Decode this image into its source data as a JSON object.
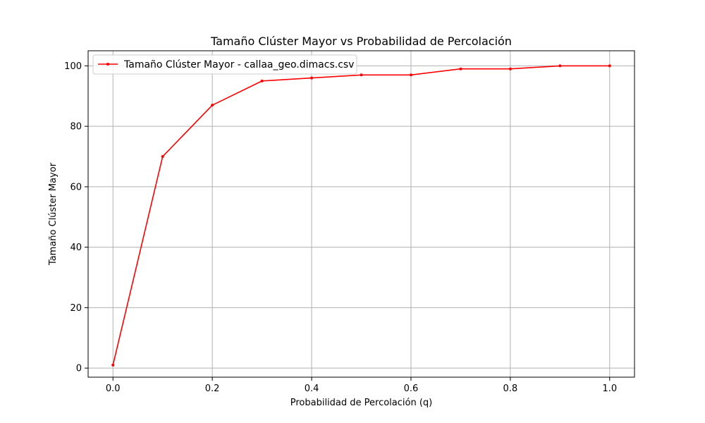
{
  "chart_data": {
    "type": "line",
    "title": "Tamaño Clúster Mayor vs Probabilidad de Percolación",
    "xlabel": "Probabilidad de Percolación (q)",
    "ylabel": "Tamaño Clúster Mayor",
    "xlim": [
      -0.05,
      1.05
    ],
    "ylim": [
      -3,
      105
    ],
    "xticks": [
      0.0,
      0.2,
      0.4,
      0.6,
      0.8,
      1.0
    ],
    "xtick_labels": [
      "0.0",
      "0.2",
      "0.4",
      "0.6",
      "0.8",
      "1.0"
    ],
    "yticks": [
      0,
      20,
      40,
      60,
      80,
      100
    ],
    "ytick_labels": [
      "0",
      "20",
      "40",
      "60",
      "80",
      "100"
    ],
    "grid": true,
    "legend_position": "top-left",
    "series": [
      {
        "name": "Tamaño Clúster Mayor - callaa_geo.dimacs.csv",
        "color": "#ff0000",
        "marker": "point",
        "x": [
          0.0,
          0.1,
          0.2,
          0.3,
          0.4,
          0.5,
          0.6,
          0.7,
          0.8,
          0.9,
          1.0
        ],
        "y": [
          1,
          70,
          87,
          95,
          96,
          97,
          97,
          99,
          99,
          100,
          100
        ]
      }
    ]
  }
}
